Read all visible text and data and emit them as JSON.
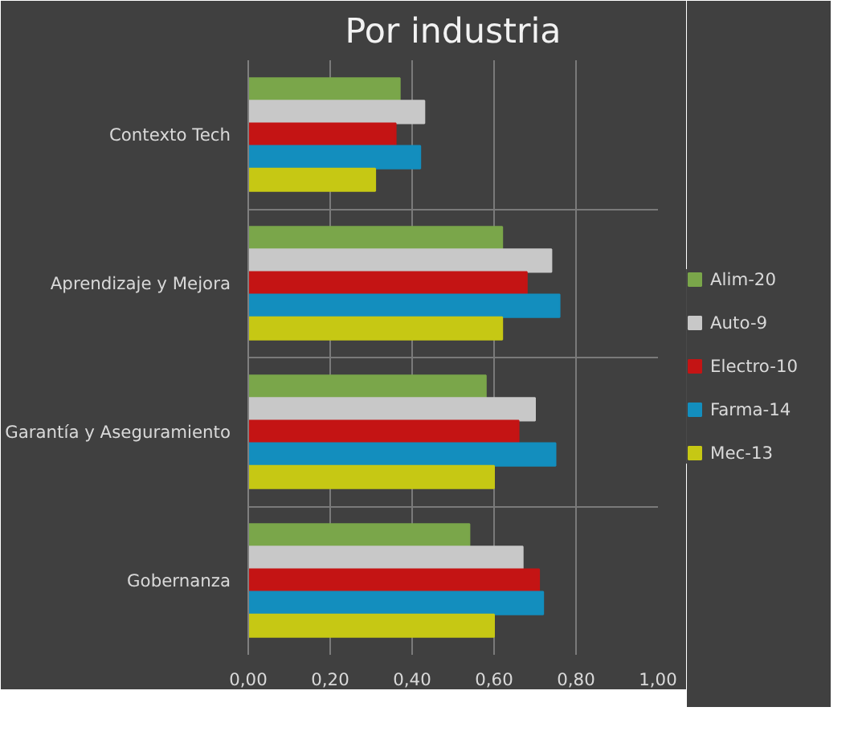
{
  "chart_data": {
    "type": "bar",
    "orientation": "horizontal",
    "title": "Por industria",
    "categories": [
      "Contexto Tech",
      "Aprendizaje y Mejora",
      "Garantía y Aseguramiento",
      "Gobernanza"
    ],
    "series": [
      {
        "name": "Alim-20",
        "color": "#7aa64a",
        "values": [
          0.37,
          0.62,
          0.58,
          0.54
        ]
      },
      {
        "name": "Auto-9",
        "color": "#c8c8c8",
        "values": [
          0.43,
          0.74,
          0.7,
          0.67
        ]
      },
      {
        "name": "Electro-10",
        "color": "#c41414",
        "values": [
          0.36,
          0.68,
          0.66,
          0.71
        ]
      },
      {
        "name": "Farma-14",
        "color": "#138ebe",
        "values": [
          0.42,
          0.76,
          0.75,
          0.72
        ]
      },
      {
        "name": "Mec-13",
        "color": "#c6c814",
        "values": [
          0.31,
          0.62,
          0.6,
          0.6
        ]
      }
    ],
    "xlim": [
      0,
      1
    ],
    "xticks": [
      {
        "value": 0,
        "label": "0,00"
      },
      {
        "value": 0.2,
        "label": "0,20"
      },
      {
        "value": 0.4,
        "label": "0,40"
      },
      {
        "value": 0.6,
        "label": "0,60"
      },
      {
        "value": 0.8,
        "label": "0,80"
      },
      {
        "value": 1,
        "label": "1,00"
      }
    ],
    "grid": true,
    "legend": "right"
  }
}
